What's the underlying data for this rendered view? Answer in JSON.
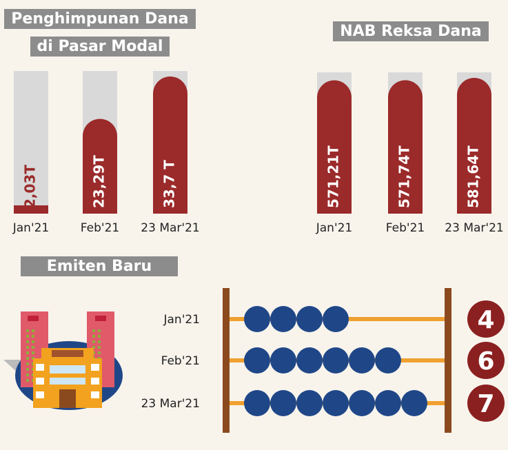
{
  "chart_data": [
    {
      "type": "bar",
      "title": "Penghimpunan Dana di Pasar Modal",
      "categories": [
        "Jan'21",
        "Feb'21",
        "23 Mar'21"
      ],
      "values": [
        2.03,
        23.29,
        33.7
      ],
      "value_labels": [
        "2,03T",
        "23,29T",
        "33,7 T"
      ],
      "color": "#9b2a2a"
    },
    {
      "type": "bar",
      "title": "NAB Reksa Dana",
      "categories": [
        "Jan'21",
        "Feb'21",
        "23 Mar'21"
      ],
      "values": [
        571.21,
        571.74,
        581.64
      ],
      "value_labels": [
        "571,21T",
        "571,74T",
        "581,64T"
      ],
      "color": "#9b2a2a"
    },
    {
      "type": "abacus",
      "title": "Emiten Baru",
      "categories": [
        "Jan'21",
        "Feb'21",
        "23 Mar'21"
      ],
      "values": [
        4,
        6,
        7
      ],
      "color": "#1f4788"
    }
  ]
}
